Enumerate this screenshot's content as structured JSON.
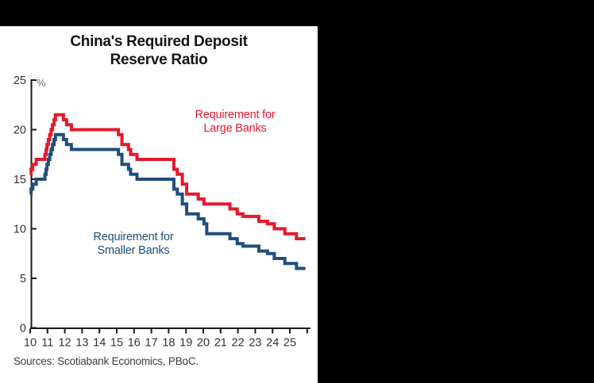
{
  "page": {
    "background_color": "#000000",
    "panel_color": "#ffffff"
  },
  "chart_data": {
    "type": "line",
    "style": "step",
    "title_line1": "China's Required Deposit",
    "title_line2": "Reserve Ratio",
    "unit_label": "%",
    "source": "Sources: Scotiabank Economics, PBoC.",
    "axis_color": "#1a1a1a",
    "tick_label_color": "#333333",
    "x_range": [
      10,
      26.2
    ],
    "y_range": [
      0,
      25
    ],
    "grid": false,
    "x_tick_values": [
      10,
      11,
      12,
      13,
      14,
      15,
      16,
      17,
      18,
      19,
      20,
      21,
      22,
      23,
      24,
      25,
      26
    ],
    "x_tick_labels": [
      "10",
      "11",
      "12",
      "13",
      "14",
      "15",
      "16",
      "17",
      "18",
      "19",
      "20",
      "21",
      "22",
      "23",
      "24",
      "25"
    ],
    "y_tick_values": [
      0,
      5,
      10,
      15,
      20,
      25
    ],
    "y_tick_labels": [
      "0",
      "5",
      "10",
      "15",
      "20",
      "25"
    ],
    "series": [
      {
        "name": "Requirement for Large Banks",
        "label_line1": "Requirement for",
        "label_line2": "Large Banks",
        "color": "#e4192b",
        "points": [
          [
            10,
            15.5
          ],
          [
            10.05,
            16
          ],
          [
            10.15,
            16.5
          ],
          [
            10.35,
            17
          ],
          [
            10.85,
            17.5
          ],
          [
            10.92,
            18
          ],
          [
            10.97,
            18.5
          ],
          [
            11.05,
            19
          ],
          [
            11.13,
            19.5
          ],
          [
            11.21,
            20
          ],
          [
            11.29,
            20.5
          ],
          [
            11.38,
            21
          ],
          [
            11.46,
            21.5
          ],
          [
            11.92,
            21
          ],
          [
            12.1,
            20.5
          ],
          [
            12.38,
            20
          ],
          [
            15.1,
            19.5
          ],
          [
            15.3,
            18.5
          ],
          [
            15.68,
            18
          ],
          [
            15.8,
            17.5
          ],
          [
            16.17,
            17
          ],
          [
            18.3,
            16
          ],
          [
            18.5,
            15.5
          ],
          [
            18.79,
            14.5
          ],
          [
            19.04,
            13.5
          ],
          [
            19.71,
            13
          ],
          [
            20.04,
            12.5
          ],
          [
            21.54,
            12
          ],
          [
            21.96,
            11.5
          ],
          [
            22.29,
            11.25
          ],
          [
            23.21,
            10.75
          ],
          [
            23.71,
            10.5
          ],
          [
            24.1,
            10
          ],
          [
            24.71,
            9.5
          ],
          [
            25.38,
            9
          ],
          [
            25.9,
            9
          ]
        ]
      },
      {
        "name": "Requirement for Smaller Banks",
        "label_line1": "Requirement for",
        "label_line2": "Smaller Banks",
        "color": "#1f4e7c",
        "points": [
          [
            10,
            13.5
          ],
          [
            10.05,
            14
          ],
          [
            10.15,
            14.5
          ],
          [
            10.35,
            15
          ],
          [
            10.85,
            15.5
          ],
          [
            10.92,
            16
          ],
          [
            10.97,
            16.5
          ],
          [
            11.05,
            17
          ],
          [
            11.13,
            17.5
          ],
          [
            11.21,
            18
          ],
          [
            11.29,
            18.5
          ],
          [
            11.38,
            19
          ],
          [
            11.46,
            19.5
          ],
          [
            11.92,
            19
          ],
          [
            12.1,
            18.5
          ],
          [
            12.38,
            18
          ],
          [
            15.1,
            17.5
          ],
          [
            15.3,
            16.5
          ],
          [
            15.68,
            16
          ],
          [
            15.8,
            15.5
          ],
          [
            16.17,
            15
          ],
          [
            18.3,
            14
          ],
          [
            18.5,
            13.5
          ],
          [
            18.79,
            12.5
          ],
          [
            19.04,
            11.5
          ],
          [
            19.71,
            11
          ],
          [
            20.04,
            10.5
          ],
          [
            20.2,
            9.5
          ],
          [
            21.54,
            9
          ],
          [
            21.96,
            8.5
          ],
          [
            22.29,
            8.25
          ],
          [
            23.21,
            7.75
          ],
          [
            23.71,
            7.5
          ],
          [
            24.1,
            7
          ],
          [
            24.71,
            6.5
          ],
          [
            25.38,
            6
          ],
          [
            25.9,
            6
          ]
        ]
      }
    ]
  }
}
